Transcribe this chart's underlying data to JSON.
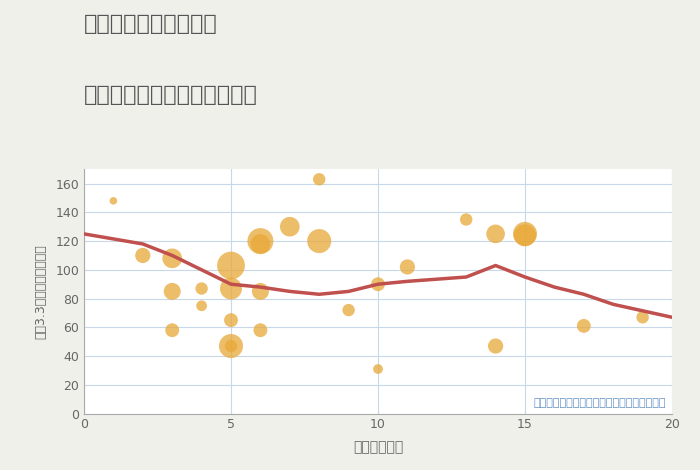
{
  "title_line1": "京都府西大路三条駅の",
  "title_line2": "駅距離別中古マンション価格",
  "xlabel": "駅距離（分）",
  "ylabel": "坪（3.3㎡）単価（万円）",
  "annotation": "円の大きさは、取引のあった物件面積を示す",
  "fig_bg_color": "#f0f0eb",
  "plot_bg_color": "#ffffff",
  "xlim": [
    0,
    20
  ],
  "ylim": [
    0,
    170
  ],
  "yticks": [
    0,
    20,
    40,
    60,
    80,
    100,
    120,
    140,
    160
  ],
  "xticks": [
    0,
    5,
    10,
    15,
    20
  ],
  "line_x": [
    0,
    2,
    3,
    5,
    6,
    7,
    8,
    9,
    10,
    11,
    13,
    14,
    15,
    16,
    17,
    18,
    20
  ],
  "line_y": [
    125,
    118,
    110,
    90,
    88,
    85,
    83,
    85,
    90,
    92,
    95,
    103,
    95,
    88,
    83,
    76,
    67
  ],
  "line_color": "#c0504d",
  "line_width": 2.5,
  "scatter_x": [
    1,
    2,
    3,
    3,
    3,
    4,
    4,
    5,
    5,
    5,
    5,
    5,
    6,
    6,
    6,
    6,
    7,
    8,
    8,
    9,
    10,
    10,
    11,
    13,
    14,
    14,
    15,
    15,
    17,
    19
  ],
  "scatter_y": [
    148,
    110,
    108,
    85,
    58,
    87,
    75,
    103,
    87,
    47,
    65,
    47,
    120,
    118,
    85,
    58,
    130,
    163,
    120,
    72,
    90,
    31,
    102,
    135,
    125,
    47,
    124,
    125,
    61,
    67
  ],
  "scatter_size": [
    30,
    120,
    200,
    150,
    100,
    80,
    60,
    400,
    250,
    300,
    100,
    80,
    350,
    200,
    150,
    100,
    200,
    80,
    300,
    80,
    100,
    50,
    120,
    80,
    180,
    120,
    250,
    300,
    100,
    80
  ],
  "scatter_color": "#e8a838",
  "scatter_alpha": 0.75,
  "title_color": "#555555",
  "title_fontsize": 16,
  "annotation_color": "#6090c0",
  "annotation_fontsize": 8,
  "axis_label_color": "#666666",
  "tick_color": "#666666"
}
